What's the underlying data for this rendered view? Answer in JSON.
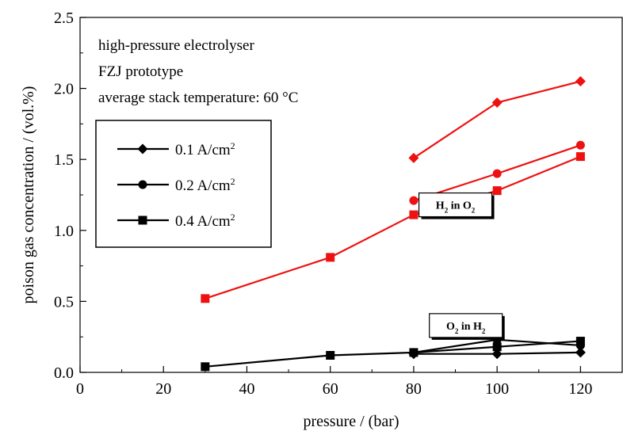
{
  "chart_data": {
    "type": "line",
    "xlabel": "pressure / (bar)",
    "ylabel": "poison gas concentration / (vol.%)",
    "xlim": [
      0,
      130
    ],
    "ylim": [
      0,
      2.5
    ],
    "xticks": [
      0,
      20,
      40,
      60,
      80,
      100,
      120
    ],
    "yticks": [
      0.0,
      0.5,
      1.0,
      1.5,
      2.0,
      2.5
    ],
    "xtick_labels": [
      "0",
      "20",
      "40",
      "60",
      "80",
      "100",
      "120"
    ],
    "ytick_labels": [
      "0.0",
      "0.5",
      "1.0",
      "1.5",
      "2.0",
      "2.5"
    ],
    "grid": false,
    "info_lines": [
      "high-pressure electrolyser",
      "FZJ prototype",
      "average stack temperature: 60 °C"
    ],
    "legend_position": "left",
    "legend": [
      {
        "marker": "diamond",
        "label": "0.1 A/cm",
        "sup": "2"
      },
      {
        "marker": "circle",
        "label": "0.2 A/cm",
        "sup": "2"
      },
      {
        "marker": "square",
        "label": "0.4 A/cm",
        "sup": "2"
      }
    ],
    "annotations": [
      {
        "id": "h2-in-o2",
        "parts": [
          {
            "t": "H"
          },
          {
            "t": "2",
            "sub": true
          },
          {
            "t": " in O"
          },
          {
            "t": "2",
            "sub": true
          }
        ],
        "x": 90,
        "y": 1.18
      },
      {
        "id": "o2-in-h2",
        "parts": [
          {
            "t": "O"
          },
          {
            "t": "2",
            "sub": true
          },
          {
            "t": " in H"
          },
          {
            "t": "2",
            "sub": true
          }
        ],
        "x": 92.5,
        "y": 0.33
      }
    ],
    "colors": {
      "h2_in_o2": "#ee1111",
      "o2_in_h2": "#000000"
    },
    "series": [
      {
        "group": "H2 in O2",
        "current": "0.1 A/cm2",
        "marker": "diamond",
        "color": "#ee1111",
        "x": [
          80,
          100,
          120
        ],
        "y": [
          1.51,
          1.9,
          2.05
        ]
      },
      {
        "group": "H2 in O2",
        "current": "0.2 A/cm2",
        "marker": "circle",
        "color": "#ee1111",
        "x": [
          80,
          100,
          120
        ],
        "y": [
          1.21,
          1.4,
          1.6
        ]
      },
      {
        "group": "H2 in O2",
        "current": "0.4 A/cm2",
        "marker": "square",
        "color": "#ee1111",
        "x": [
          30,
          60,
          80,
          100,
          120
        ],
        "y": [
          0.52,
          0.81,
          1.11,
          1.28,
          1.52
        ]
      },
      {
        "group": "O2 in H2",
        "current": "0.1 A/cm2",
        "marker": "diamond",
        "color": "#000000",
        "x": [
          80,
          100,
          120
        ],
        "y": [
          0.13,
          0.13,
          0.14
        ]
      },
      {
        "group": "O2 in H2",
        "current": "0.2 A/cm2",
        "marker": "circle",
        "color": "#000000",
        "x": [
          80,
          100,
          120
        ],
        "y": [
          0.14,
          0.23,
          0.19
        ]
      },
      {
        "group": "O2 in H2",
        "current": "0.4 A/cm2",
        "marker": "square",
        "color": "#000000",
        "x": [
          30,
          60,
          80,
          100,
          120
        ],
        "y": [
          0.04,
          0.12,
          0.14,
          0.18,
          0.22
        ]
      }
    ]
  }
}
